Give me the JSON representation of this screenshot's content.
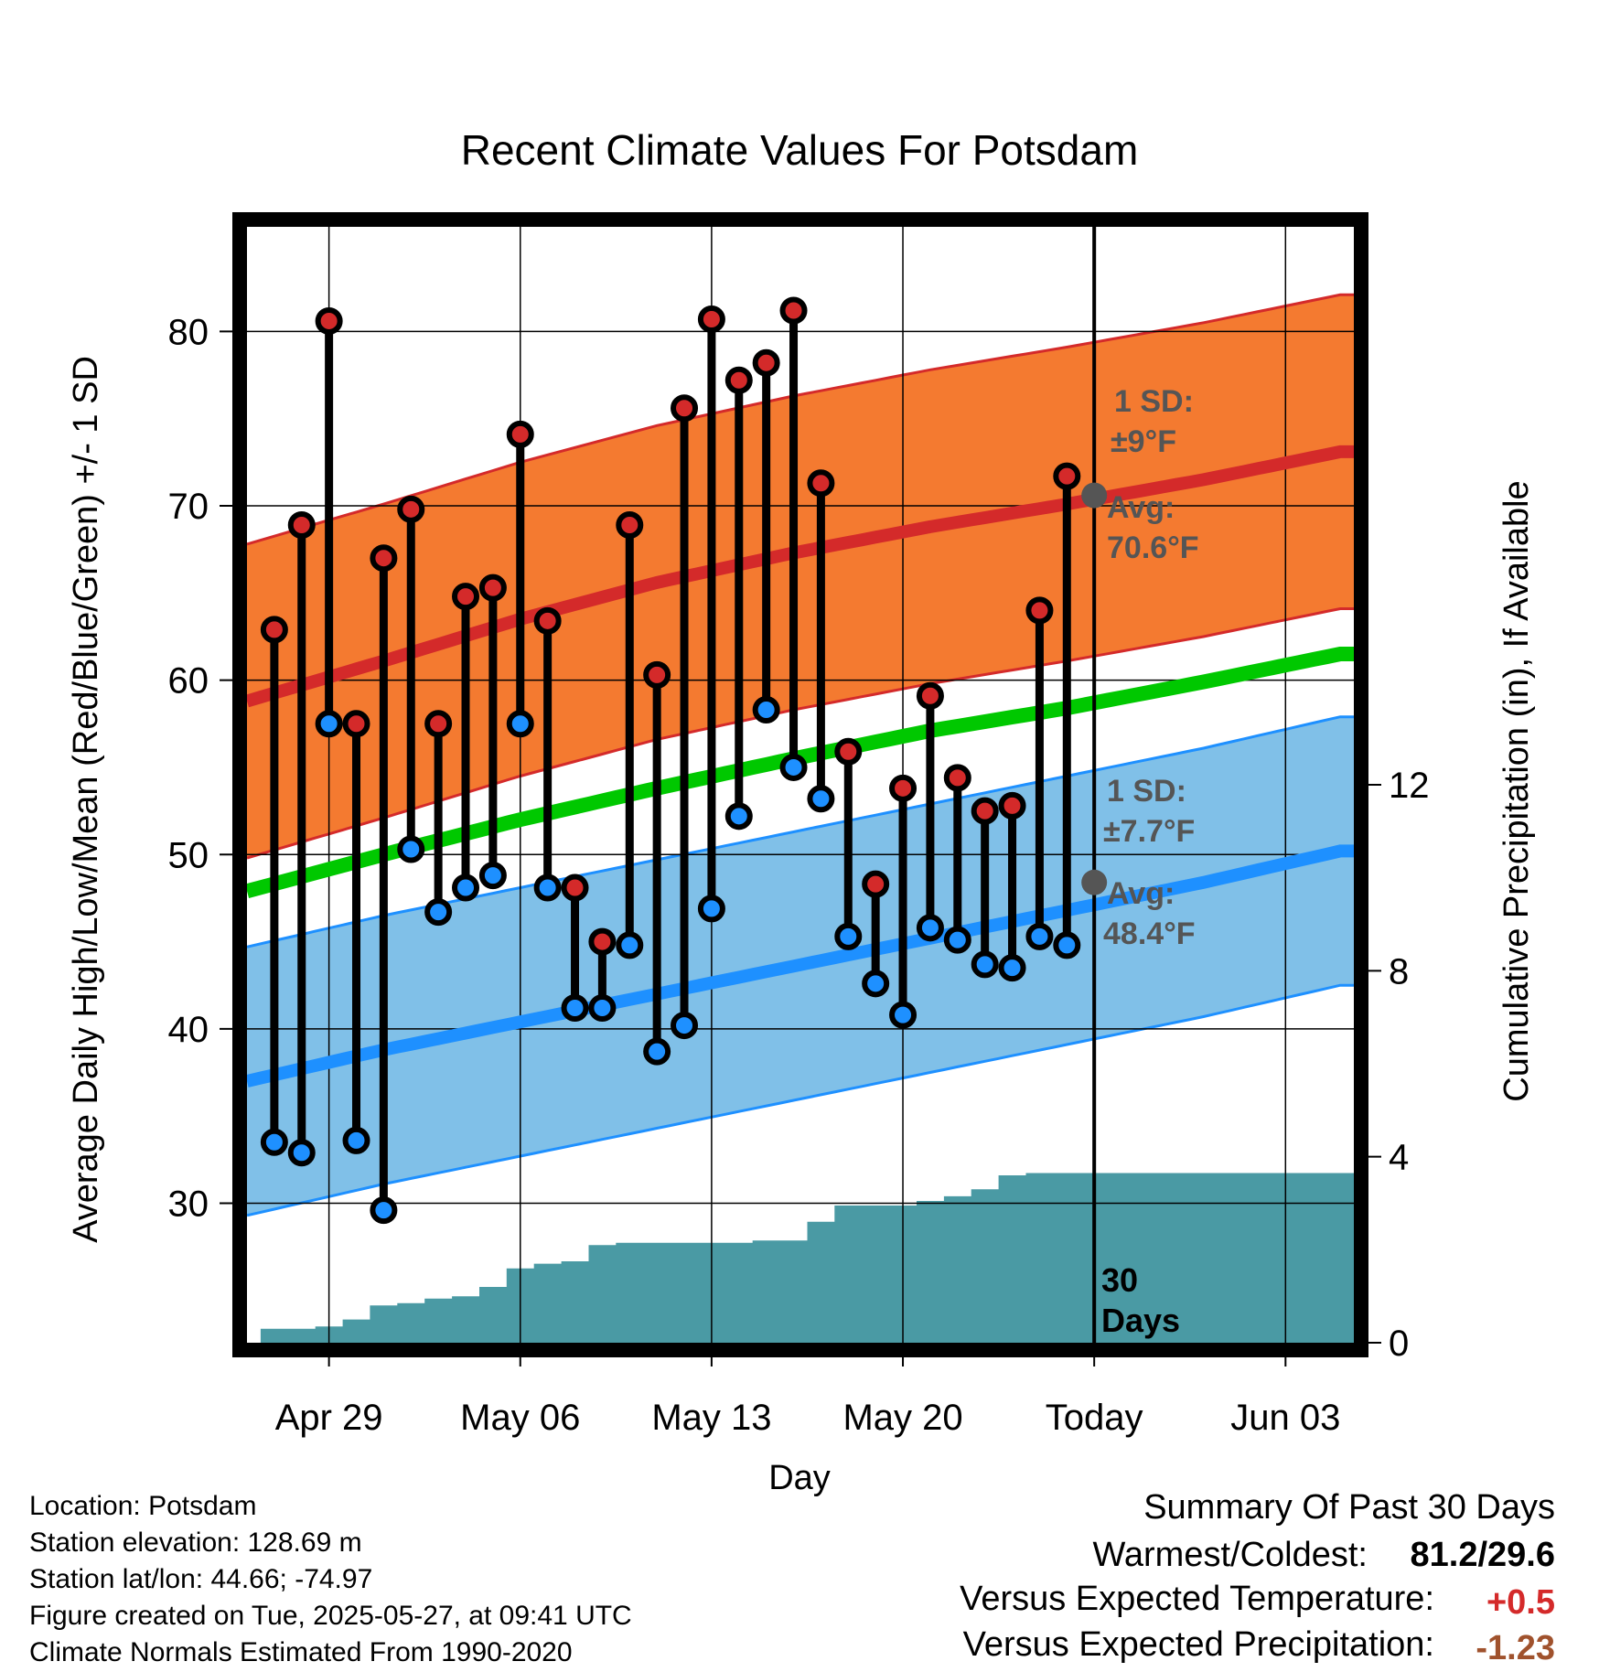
{
  "chart_data": {
    "type": "line",
    "title": "Recent Climate Values For Potsdam",
    "xlabel": "Day",
    "ylabel": "Average Daily High/Low/Mean (Red/Blue/Green) +/- 1 SD",
    "y2label": "Cumulative Precipitation (in), If Available",
    "ylim": [
      22,
      86
    ],
    "y2lim": [
      0,
      24
    ],
    "x_ticks": [
      "Apr 29",
      "May 06",
      "May 13",
      "May 20",
      "Today",
      "Jun 03"
    ],
    "y_ticks": [
      30,
      40,
      50,
      60,
      70,
      80
    ],
    "y2_ticks": [
      0,
      4,
      8,
      12
    ],
    "grid": true,
    "colors": {
      "high_band": "#f47a30",
      "high_line": "#d42a2a",
      "low_band": "#80c0e8",
      "low_line": "#1e90ff",
      "mean_line": "#00c800",
      "precip": "#4a9aa4",
      "high_dot": "#d42a2a",
      "low_dot": "#1e90ff"
    },
    "normals": {
      "days": [
        0,
        5,
        10,
        15,
        20,
        25,
        30,
        35,
        40
      ],
      "high_avg": [
        58.8,
        61.1,
        63.5,
        65.6,
        67.3,
        68.8,
        70.1,
        71.5,
        73.1
      ],
      "high_sd": 9,
      "low_avg": [
        37.0,
        38.8,
        40.4,
        42.0,
        43.6,
        45.2,
        46.8,
        48.4,
        50.2
      ],
      "low_sd": 7.7,
      "mean_avg": [
        47.9,
        50.0,
        52.0,
        53.8,
        55.5,
        57.1,
        58.4,
        59.9,
        61.5
      ]
    },
    "observed": {
      "days": [
        1,
        2,
        3,
        4,
        5,
        6,
        7,
        8,
        9,
        10,
        11,
        12,
        13,
        14,
        15,
        16,
        17,
        18,
        19,
        20,
        21,
        22,
        23,
        24,
        25,
        26,
        27,
        28,
        29,
        30
      ],
      "highs": [
        62.9,
        68.9,
        80.6,
        57.5,
        67.0,
        69.8,
        57.5,
        64.8,
        65.3,
        74.1,
        63.4,
        48.1,
        45.0,
        68.9,
        60.3,
        75.6,
        80.7,
        77.2,
        78.2,
        81.2,
        71.3,
        55.9,
        48.3,
        53.8,
        59.1,
        54.4,
        52.5,
        52.8,
        64.0,
        71.7
      ],
      "lows": [
        33.5,
        32.9,
        57.5,
        33.6,
        29.6,
        50.3,
        46.7,
        48.1,
        48.8,
        57.5,
        48.1,
        41.2,
        41.2,
        44.8,
        38.7,
        40.2,
        46.9,
        52.2,
        58.3,
        55.0,
        53.2,
        45.3,
        42.6,
        40.8,
        45.8,
        45.1,
        43.7,
        43.5,
        45.3,
        44.8
      ]
    },
    "precipitation": {
      "days": [
        0,
        1,
        3,
        4,
        5,
        6,
        7,
        8,
        9,
        10,
        11,
        12,
        13,
        14,
        15,
        16,
        17,
        18,
        19,
        20,
        21,
        22,
        23,
        24,
        25,
        26,
        27,
        28,
        29,
        30,
        40
      ],
      "cumulative": [
        0,
        0.3,
        0.35,
        0.5,
        0.8,
        0.85,
        0.95,
        1.0,
        1.2,
        1.6,
        1.7,
        1.75,
        2.1,
        2.15,
        2.15,
        2.15,
        2.15,
        2.15,
        2.2,
        2.2,
        2.6,
        2.95,
        2.95,
        2.95,
        3.05,
        3.15,
        3.3,
        3.6,
        3.65,
        3.65,
        3.65
      ]
    },
    "today_marker": {
      "label": "Today",
      "high_dot_value": 70.6,
      "low_dot_value": 48.4
    },
    "annotations": {
      "high_sd_title": "1 SD:",
      "high_sd_value": "±9°F",
      "high_avg_title": "Avg:",
      "high_avg_value": "70.6°F",
      "low_sd_title": "1 SD:",
      "low_sd_value": "±7.7°F",
      "low_avg_title": "Avg:",
      "low_avg_value": "48.4°F",
      "days_line1": "30",
      "days_line2": "Days"
    }
  },
  "info": {
    "location": "Location: Potsdam",
    "elevation": "Station elevation: 128.69 m",
    "latlon": "Station lat/lon: 44.66; -74.97",
    "created": "Figure created on Tue, 2025-05-27, at 09:41 UTC",
    "normals": "Climate Normals Estimated From 1990-2020"
  },
  "summary": {
    "title": "Summary Of Past 30 Days",
    "warmest_label": "Warmest/Coldest:",
    "warmest_value": "81.2/29.6",
    "temp_label": "Versus Expected Temperature:",
    "temp_value": "+0.5",
    "temp_color": "#d42a2a",
    "precip_label": "Versus Expected Precipitation:",
    "precip_value": "-1.23",
    "precip_color": "#a0522d"
  }
}
